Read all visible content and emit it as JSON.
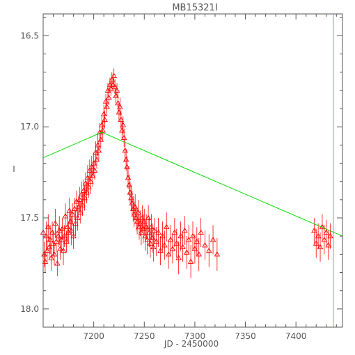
{
  "chart_data": {
    "type": "scatter",
    "title": "MB15321I",
    "xlabel": "JD - 2450000",
    "ylabel": "I",
    "xlim": [
      7150,
      7446
    ],
    "ylim": [
      18.1,
      16.38
    ],
    "y_inverted": true,
    "xticks": [
      7200,
      7250,
      7300,
      7350,
      7400
    ],
    "yticks": [
      16.5,
      17.0,
      17.5,
      18.0
    ],
    "xtick_labels": [
      "7200",
      "7250",
      "7300",
      "7350",
      "7400"
    ],
    "ytick_labels": [
      "16.5",
      "17.0",
      "17.5",
      "18.0"
    ],
    "grid": false,
    "colors": {
      "points": "#ff0000",
      "model_line": "#00dd00",
      "marker_line": "#8a8aff",
      "axes": "#555555"
    },
    "model_line": [
      [
        7150,
        17.17
      ],
      [
        7208,
        17.03
      ],
      [
        7446,
        17.6
      ]
    ],
    "vertical_marker_x": 7437,
    "points": [
      [
        7150,
        17.58,
        0.06
      ],
      [
        7151,
        17.7,
        0.07
      ],
      [
        7152,
        17.74,
        0.06
      ],
      [
        7153,
        17.6,
        0.08
      ],
      [
        7154,
        17.68,
        0.06
      ],
      [
        7155,
        17.55,
        0.07
      ],
      [
        7156,
        17.66,
        0.06
      ],
      [
        7157,
        17.62,
        0.08
      ],
      [
        7158,
        17.72,
        0.07
      ],
      [
        7159,
        17.58,
        0.06
      ],
      [
        7160,
        17.64,
        0.07
      ],
      [
        7161,
        17.7,
        0.06
      ],
      [
        7162,
        17.53,
        0.08
      ],
      [
        7163,
        17.63,
        0.06
      ],
      [
        7164,
        17.75,
        0.07
      ],
      [
        7165,
        17.6,
        0.06
      ],
      [
        7166,
        17.57,
        0.08
      ],
      [
        7167,
        17.67,
        0.06
      ],
      [
        7168,
        17.62,
        0.07
      ],
      [
        7169,
        17.56,
        0.06
      ],
      [
        7170,
        17.68,
        0.08
      ],
      [
        7171,
        17.6,
        0.06
      ],
      [
        7172,
        17.49,
        0.07
      ],
      [
        7173,
        17.63,
        0.06
      ],
      [
        7174,
        17.55,
        0.08
      ],
      [
        7175,
        17.58,
        0.06
      ],
      [
        7176,
        17.46,
        0.07
      ],
      [
        7177,
        17.52,
        0.06
      ],
      [
        7178,
        17.57,
        0.08
      ],
      [
        7179,
        17.48,
        0.06
      ],
      [
        7180,
        17.6,
        0.07
      ],
      [
        7181,
        17.45,
        0.06
      ],
      [
        7182,
        17.53,
        0.07
      ],
      [
        7183,
        17.41,
        0.06
      ],
      [
        7184,
        17.5,
        0.07
      ],
      [
        7185,
        17.44,
        0.06
      ],
      [
        7186,
        17.4,
        0.07
      ],
      [
        7187,
        17.47,
        0.06
      ],
      [
        7188,
        17.37,
        0.07
      ],
      [
        7189,
        17.43,
        0.06
      ],
      [
        7190,
        17.35,
        0.06
      ],
      [
        7191,
        17.39,
        0.07
      ],
      [
        7192,
        17.31,
        0.06
      ],
      [
        7193,
        17.36,
        0.06
      ],
      [
        7194,
        17.28,
        0.07
      ],
      [
        7195,
        17.33,
        0.06
      ],
      [
        7196,
        17.24,
        0.06
      ],
      [
        7197,
        17.3,
        0.07
      ],
      [
        7198,
        17.22,
        0.06
      ],
      [
        7199,
        17.27,
        0.06
      ],
      [
        7200,
        17.2,
        0.06
      ],
      [
        7201,
        17.24,
        0.05
      ],
      [
        7202,
        17.14,
        0.06
      ],
      [
        7203,
        17.18,
        0.05
      ],
      [
        7204,
        17.1,
        0.06
      ],
      [
        7205,
        17.13,
        0.05
      ],
      [
        7206,
        17.03,
        0.05
      ],
      [
        7207,
        17.07,
        0.05
      ],
      [
        7208,
        16.99,
        0.05
      ],
      [
        7209,
        17.02,
        0.05
      ],
      [
        7210,
        16.93,
        0.05
      ],
      [
        7211,
        16.96,
        0.05
      ],
      [
        7212,
        16.86,
        0.04
      ],
      [
        7213,
        16.89,
        0.05
      ],
      [
        7214,
        16.8,
        0.04
      ],
      [
        7215,
        16.84,
        0.04
      ],
      [
        7216,
        16.77,
        0.04
      ],
      [
        7217,
        16.79,
        0.04
      ],
      [
        7218,
        16.74,
        0.04
      ],
      [
        7219,
        16.77,
        0.04
      ],
      [
        7220,
        16.72,
        0.04
      ],
      [
        7221,
        16.78,
        0.04
      ],
      [
        7222,
        16.83,
        0.04
      ],
      [
        7223,
        16.8,
        0.04
      ],
      [
        7224,
        16.87,
        0.05
      ],
      [
        7225,
        16.92,
        0.05
      ],
      [
        7226,
        16.89,
        0.05
      ],
      [
        7227,
        16.96,
        0.05
      ],
      [
        7228,
        17.02,
        0.05
      ],
      [
        7229,
        16.99,
        0.05
      ],
      [
        7230,
        17.06,
        0.05
      ],
      [
        7231,
        17.13,
        0.06
      ],
      [
        7232,
        17.18,
        0.06
      ],
      [
        7233,
        17.22,
        0.06
      ],
      [
        7234,
        17.28,
        0.06
      ],
      [
        7235,
        17.32,
        0.06
      ],
      [
        7236,
        17.36,
        0.06
      ],
      [
        7237,
        17.39,
        0.07
      ],
      [
        7238,
        17.42,
        0.07
      ],
      [
        7239,
        17.45,
        0.07
      ],
      [
        7240,
        17.48,
        0.07
      ],
      [
        7241,
        17.44,
        0.07
      ],
      [
        7242,
        17.5,
        0.07
      ],
      [
        7243,
        17.52,
        0.07
      ],
      [
        7244,
        17.47,
        0.07
      ],
      [
        7245,
        17.55,
        0.07
      ],
      [
        7246,
        17.53,
        0.07
      ],
      [
        7247,
        17.58,
        0.07
      ],
      [
        7248,
        17.5,
        0.07
      ],
      [
        7249,
        17.56,
        0.08
      ],
      [
        7250,
        17.52,
        0.07
      ],
      [
        7251,
        17.6,
        0.08
      ],
      [
        7252,
        17.55,
        0.07
      ],
      [
        7253,
        17.62,
        0.08
      ],
      [
        7254,
        17.5,
        0.07
      ],
      [
        7255,
        17.58,
        0.08
      ],
      [
        7256,
        17.64,
        0.08
      ],
      [
        7257,
        17.55,
        0.07
      ],
      [
        7258,
        17.61,
        0.08
      ],
      [
        7259,
        17.66,
        0.08
      ],
      [
        7260,
        17.57,
        0.07
      ],
      [
        7262,
        17.63,
        0.08
      ],
      [
        7264,
        17.58,
        0.08
      ],
      [
        7266,
        17.68,
        0.08
      ],
      [
        7268,
        17.6,
        0.08
      ],
      [
        7270,
        17.65,
        0.08
      ],
      [
        7272,
        17.55,
        0.08
      ],
      [
        7274,
        17.7,
        0.08
      ],
      [
        7276,
        17.62,
        0.08
      ],
      [
        7278,
        17.67,
        0.08
      ],
      [
        7280,
        17.58,
        0.08
      ],
      [
        7282,
        17.64,
        0.08
      ],
      [
        7284,
        17.72,
        0.09
      ],
      [
        7286,
        17.6,
        0.08
      ],
      [
        7288,
        17.66,
        0.08
      ],
      [
        7290,
        17.57,
        0.08
      ],
      [
        7292,
        17.69,
        0.09
      ],
      [
        7294,
        17.62,
        0.08
      ],
      [
        7296,
        17.74,
        0.09
      ],
      [
        7298,
        17.6,
        0.08
      ],
      [
        7300,
        17.67,
        0.08
      ],
      [
        7302,
        17.63,
        0.08
      ],
      [
        7304,
        17.7,
        0.09
      ],
      [
        7306,
        17.58,
        0.08
      ],
      [
        7310,
        17.65,
        0.08
      ],
      [
        7314,
        17.68,
        0.09
      ],
      [
        7318,
        17.62,
        0.08
      ],
      [
        7322,
        17.7,
        0.09
      ],
      [
        7418,
        17.57,
        0.07
      ],
      [
        7420,
        17.64,
        0.08
      ],
      [
        7422,
        17.6,
        0.07
      ],
      [
        7424,
        17.66,
        0.08
      ],
      [
        7426,
        17.55,
        0.07
      ],
      [
        7428,
        17.62,
        0.08
      ],
      [
        7430,
        17.58,
        0.07
      ],
      [
        7432,
        17.65,
        0.08
      ],
      [
        7434,
        17.6,
        0.07
      ]
    ]
  }
}
